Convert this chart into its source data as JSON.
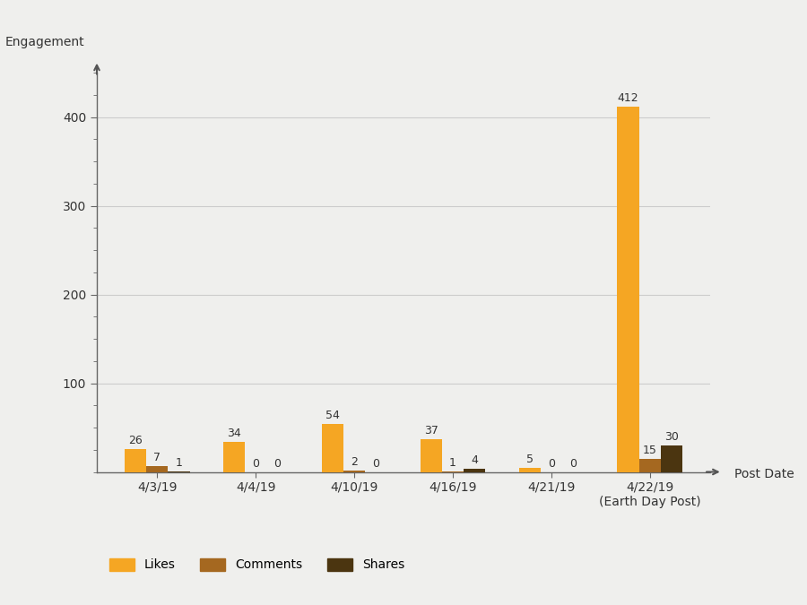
{
  "categories": [
    "4/3/19",
    "4/4/19",
    "4/10/19",
    "4/16/19",
    "4/21/19",
    "4/22/19\n(Earth Day Post)"
  ],
  "likes": [
    26,
    34,
    54,
    37,
    5,
    412
  ],
  "comments": [
    7,
    0,
    2,
    1,
    0,
    15
  ],
  "shares": [
    1,
    0,
    0,
    4,
    0,
    30
  ],
  "likes_color": "#F5A623",
  "comments_color": "#A56820",
  "shares_color": "#4B3510",
  "background_color": "#EFEFED",
  "ylabel": "Engagement",
  "xlabel": "Post Date",
  "yticks": [
    100,
    200,
    300,
    400
  ],
  "ylim": [
    0,
    450
  ],
  "bar_width": 0.22,
  "label_fontsize": 9,
  "axis_label_fontsize": 10,
  "tick_fontsize": 10,
  "legend_labels": [
    "Likes",
    "Comments",
    "Shares"
  ]
}
